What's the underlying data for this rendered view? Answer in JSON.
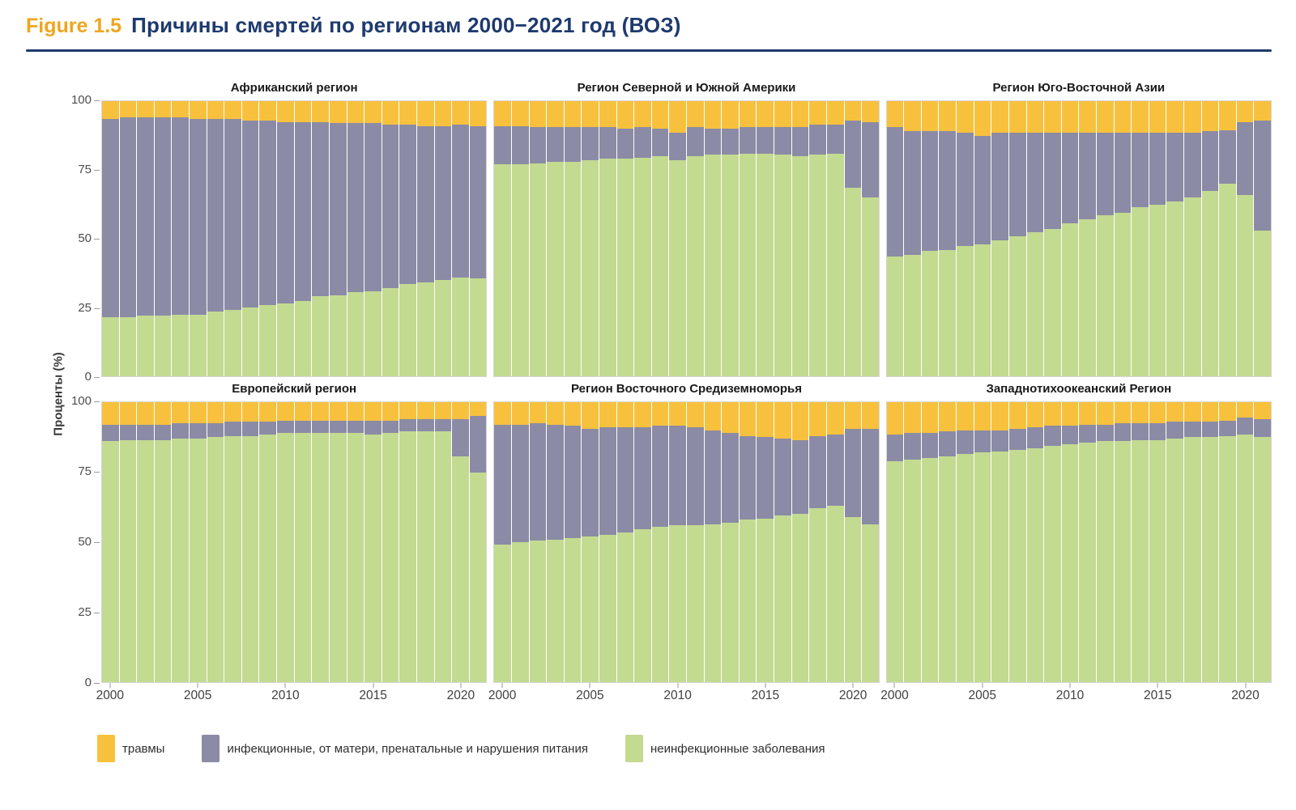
{
  "header": {
    "figure_label": "Figure 1.5",
    "title": "Причины смертей по регионам 2000−2021 год (ВОЗ)",
    "accent_color": "#EFA51E",
    "title_color": "#1E3A6E"
  },
  "y_axis": {
    "label": "Проценты (%)",
    "ticks": [
      "100",
      "75",
      "50",
      "25",
      "0"
    ],
    "values": [
      100,
      75,
      50,
      25,
      0
    ]
  },
  "x_axis": {
    "ticks": [
      "2000",
      "2005",
      "2010",
      "2015",
      "2020"
    ],
    "tick_year_indexes": [
      0,
      5,
      10,
      15,
      20
    ]
  },
  "legend": {
    "items": [
      {
        "label": "травмы",
        "color": "#F8C13D"
      },
      {
        "label": "инфекционные, от матери, пренатальные и нарушения питания",
        "color": "#8B8BA6"
      },
      {
        "label": "неинфекционные заболевания",
        "color": "#C3DA91"
      }
    ]
  },
  "chart_data": [
    {
      "type": "bar",
      "stacked": true,
      "title": "Африканский регион",
      "x": [
        2000,
        2001,
        2002,
        2003,
        2004,
        2005,
        2006,
        2007,
        2008,
        2009,
        2010,
        2011,
        2012,
        2013,
        2014,
        2015,
        2016,
        2017,
        2018,
        2019,
        2020,
        2021
      ],
      "ylim": [
        0,
        100
      ],
      "ylabel": "Проценты (%)",
      "series": [
        {
          "name": "неинфекционные заболевания",
          "color": "#C3DA91",
          "values": [
            21.5,
            21.5,
            22,
            22,
            22.5,
            22.5,
            23.5,
            24,
            25,
            26,
            26.5,
            27.5,
            29,
            29.5,
            30.5,
            31,
            32,
            33.5,
            34,
            35,
            36,
            35.5
          ]
        },
        {
          "name": "инфекционные, от матери, пренатальные и нарушения питания",
          "color": "#8B8BA6",
          "values": [
            72,
            72.5,
            72,
            72,
            71.5,
            71,
            70,
            69.5,
            68,
            67,
            66,
            65,
            63.5,
            62.5,
            61.5,
            61,
            59.5,
            58,
            57,
            56,
            55.5,
            55.5
          ]
        },
        {
          "name": "травмы",
          "color": "#F8C13D",
          "values": [
            6.5,
            6,
            6,
            6,
            6,
            6.5,
            6.5,
            6.5,
            7,
            7,
            7.5,
            7.5,
            7.5,
            8,
            8,
            8,
            8.5,
            8.5,
            9,
            9,
            8.5,
            9
          ]
        }
      ]
    },
    {
      "type": "bar",
      "stacked": true,
      "title": "Регион Северной и Южной Америки",
      "x": [
        2000,
        2001,
        2002,
        2003,
        2004,
        2005,
        2006,
        2007,
        2008,
        2009,
        2010,
        2011,
        2012,
        2013,
        2014,
        2015,
        2016,
        2017,
        2018,
        2019,
        2020,
        2021
      ],
      "ylim": [
        0,
        100
      ],
      "ylabel": "Проценты (%)",
      "series": [
        {
          "name": "неинфекционные заболевания",
          "color": "#C3DA91",
          "values": [
            77,
            77,
            77.5,
            78,
            78,
            78.5,
            79,
            79,
            79.5,
            80,
            78.5,
            80,
            80.5,
            80.5,
            81,
            81,
            80.5,
            80,
            80.5,
            81,
            68.5,
            65
          ]
        },
        {
          "name": "инфекционные, от матери, пренатальные и нарушения питания",
          "color": "#8B8BA6",
          "values": [
            14,
            14,
            13,
            12.5,
            12.5,
            12,
            11.5,
            11,
            11,
            10,
            10,
            10.5,
            9.5,
            9.5,
            9.5,
            9.5,
            10,
            10.5,
            11,
            10.5,
            24.5,
            27.5
          ]
        },
        {
          "name": "травмы",
          "color": "#F8C13D",
          "values": [
            9,
            9,
            9.5,
            9.5,
            9.5,
            9.5,
            9.5,
            10,
            9.5,
            10,
            11.5,
            9.5,
            10,
            10,
            9.5,
            9.5,
            9.5,
            9.5,
            8.5,
            8.5,
            7,
            7.5
          ]
        }
      ]
    },
    {
      "type": "bar",
      "stacked": true,
      "title": "Регион Юго-Восточной Азии",
      "x": [
        2000,
        2001,
        2002,
        2003,
        2004,
        2005,
        2006,
        2007,
        2008,
        2009,
        2010,
        2011,
        2012,
        2013,
        2014,
        2015,
        2016,
        2017,
        2018,
        2019,
        2020,
        2021
      ],
      "ylim": [
        0,
        100
      ],
      "ylabel": "Проценты (%)",
      "series": [
        {
          "name": "неинфекционные заболевания",
          "color": "#C3DA91",
          "values": [
            43.5,
            44,
            45.5,
            46,
            47.5,
            48,
            49.5,
            51,
            52.5,
            53.5,
            55.5,
            57,
            58.5,
            59.5,
            61.5,
            62.5,
            63.5,
            65,
            67.5,
            70,
            66,
            53
          ]
        },
        {
          "name": "инфекционные, от матери, пренатальные и нарушения питания",
          "color": "#8B8BA6",
          "values": [
            47,
            45,
            43.5,
            43,
            41,
            39.5,
            39,
            37.5,
            36,
            35,
            33,
            31.5,
            30,
            29,
            27,
            26,
            25,
            23.5,
            21.5,
            19.5,
            26.5,
            40
          ]
        },
        {
          "name": "травмы",
          "color": "#F8C13D",
          "values": [
            9.5,
            11,
            11,
            11,
            11.5,
            12.5,
            11.5,
            11.5,
            11.5,
            11.5,
            11.5,
            11.5,
            11.5,
            11.5,
            11.5,
            11.5,
            11.5,
            11.5,
            11,
            10.5,
            7.5,
            7
          ]
        }
      ]
    },
    {
      "type": "bar",
      "stacked": true,
      "title": "Европейский регион",
      "x": [
        2000,
        2001,
        2002,
        2003,
        2004,
        2005,
        2006,
        2007,
        2008,
        2009,
        2010,
        2011,
        2012,
        2013,
        2014,
        2015,
        2016,
        2017,
        2018,
        2019,
        2020,
        2021
      ],
      "ylim": [
        0,
        100
      ],
      "ylabel": "Проценты (%)",
      "series": [
        {
          "name": "неинфекционные заболевания",
          "color": "#C3DA91",
          "values": [
            86,
            86.5,
            86.5,
            86.5,
            87,
            87,
            87.5,
            88,
            88,
            88.5,
            89,
            89,
            89,
            89,
            89,
            88.5,
            89,
            89.5,
            89.5,
            89.5,
            80.5,
            75
          ]
        },
        {
          "name": "инфекционные, от матери, пренатальные и нарушения питания",
          "color": "#8B8BA6",
          "values": [
            6,
            5.5,
            5.5,
            5.5,
            5.5,
            5.5,
            5,
            5,
            5,
            4.5,
            4.5,
            4.5,
            4.5,
            4.5,
            4.5,
            5,
            4.5,
            4.5,
            4.5,
            4.5,
            13.5,
            20
          ]
        },
        {
          "name": "травмы",
          "color": "#F8C13D",
          "values": [
            8,
            8,
            8,
            8,
            7.5,
            7.5,
            7.5,
            7,
            7,
            7,
            6.5,
            6.5,
            6.5,
            6.5,
            6.5,
            6.5,
            6.5,
            6,
            6,
            6,
            6,
            5
          ]
        }
      ]
    },
    {
      "type": "bar",
      "stacked": true,
      "title": "Регион Восточного Средиземноморья",
      "x": [
        2000,
        2001,
        2002,
        2003,
        2004,
        2005,
        2006,
        2007,
        2008,
        2009,
        2010,
        2011,
        2012,
        2013,
        2014,
        2015,
        2016,
        2017,
        2018,
        2019,
        2020,
        2021
      ],
      "ylim": [
        0,
        100
      ],
      "ylabel": "Проценты (%)",
      "series": [
        {
          "name": "неинфекционные заболевания",
          "color": "#C3DA91",
          "values": [
            49,
            50,
            50.5,
            51,
            51.5,
            52,
            52.5,
            53.5,
            54.5,
            55.5,
            56,
            56,
            56.5,
            57,
            58,
            58.5,
            59.5,
            60,
            62,
            63,
            59,
            56.5
          ]
        },
        {
          "name": "инфекционные, от матери, пренатальные и нарушения питания",
          "color": "#8B8BA6",
          "values": [
            43,
            42,
            42,
            41,
            40,
            38.5,
            38.5,
            37.5,
            36.5,
            36,
            35.5,
            35,
            33.5,
            32,
            30,
            29,
            27.5,
            26.5,
            26,
            25.5,
            31.5,
            34
          ]
        },
        {
          "name": "травмы",
          "color": "#F8C13D",
          "values": [
            8,
            8,
            7.5,
            8,
            8.5,
            9.5,
            9,
            9,
            9,
            8.5,
            8.5,
            9,
            10,
            11,
            12,
            12.5,
            13,
            13.5,
            12,
            11.5,
            9.5,
            9.5
          ]
        }
      ]
    },
    {
      "type": "bar",
      "stacked": true,
      "title": "Западнотихоокеанский Регион",
      "x": [
        2000,
        2001,
        2002,
        2003,
        2004,
        2005,
        2006,
        2007,
        2008,
        2009,
        2010,
        2011,
        2012,
        2013,
        2014,
        2015,
        2016,
        2017,
        2018,
        2019,
        2020,
        2021
      ],
      "ylim": [
        0,
        100
      ],
      "ylabel": "Проценты (%)",
      "series": [
        {
          "name": "неинфекционные заболевания",
          "color": "#C3DA91",
          "values": [
            79,
            79.5,
            80,
            80.5,
            81.5,
            82,
            82.5,
            83,
            83.5,
            84.5,
            85,
            85.5,
            86,
            86,
            86.5,
            86.5,
            87,
            87.5,
            87.5,
            88,
            88.5,
            87.5
          ]
        },
        {
          "name": "инфекционные, от матери, пренатальные и нарушения питания",
          "color": "#8B8BA6",
          "values": [
            9.5,
            9.5,
            9,
            9,
            8.5,
            8,
            7.5,
            7.5,
            7.5,
            7,
            6.5,
            6.5,
            6,
            6.5,
            6,
            6,
            6,
            5.5,
            5.5,
            5.5,
            6,
            6.5
          ]
        },
        {
          "name": "травмы",
          "color": "#F8C13D",
          "values": [
            11.5,
            11,
            11,
            10.5,
            10,
            10,
            10,
            9.5,
            9,
            8.5,
            8.5,
            8,
            8,
            7.5,
            7.5,
            7.5,
            7,
            7,
            7,
            6.5,
            5.5,
            6
          ]
        }
      ]
    }
  ]
}
